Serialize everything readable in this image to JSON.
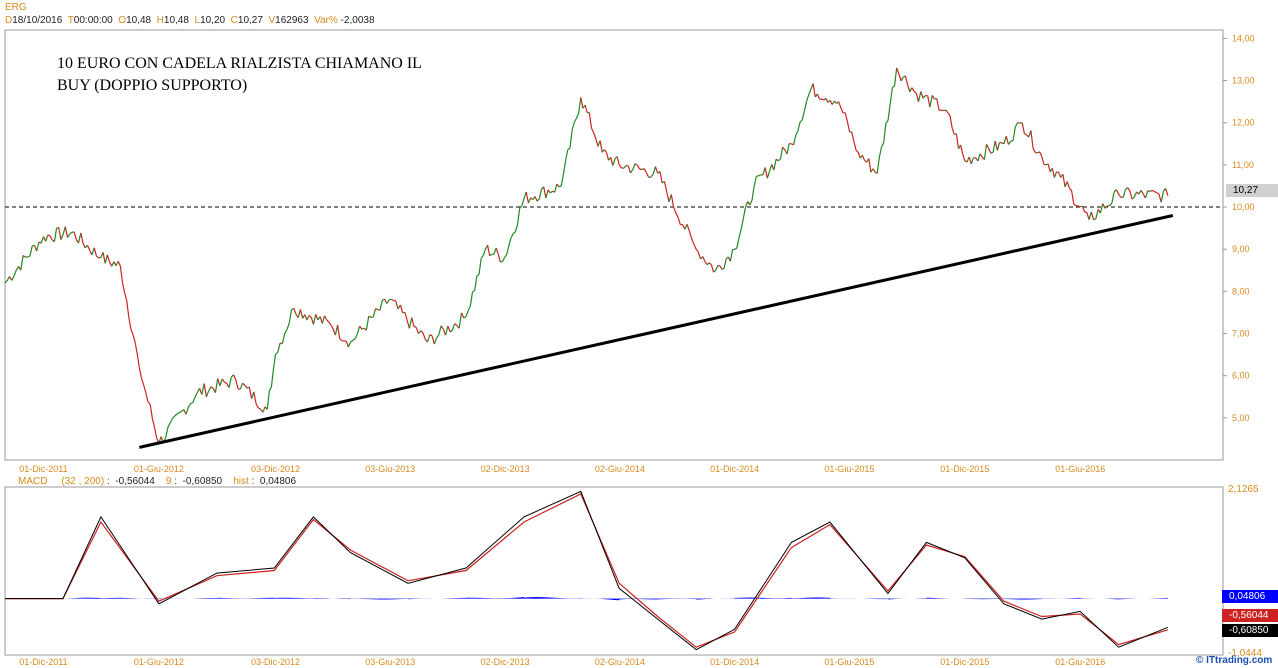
{
  "header": {
    "symbol": "ERG",
    "date_key": "D",
    "date_val": "18/10/2016",
    "time_key": "T",
    "time_val": "00:00:00",
    "open_key": "O",
    "open_val": "10,48",
    "high_key": "H",
    "high_val": "10,48",
    "low_key": "L",
    "low_val": "10,20",
    "close_key": "C",
    "close_val": "10,27",
    "vol_key": "V",
    "vol_val": "162963",
    "var_key": "Var%",
    "var_val": "-2,0038"
  },
  "annotation": {
    "line1": "10 EURO CON CADELA RIALZISTA CHIAMANO IL",
    "line2": "BUY (DOPPIO SUPPORTO)"
  },
  "price_panel": {
    "y_ticks": [
      "14,00",
      "13,00",
      "12,00",
      "11,00",
      "10,00",
      "9,00",
      "8,00",
      "7,00",
      "6,00",
      "5,00"
    ],
    "last_price": "10,27"
  },
  "x_ticks": [
    "01-Dic-2011",
    "01-Giu-2012",
    "03-Dic-2012",
    "03-Giu-2013",
    "02-Dic-2013",
    "02-Giu-2014",
    "01-Dic-2014",
    "01-Giu-2015",
    "01-Dic-2015",
    "01-Giu-2016"
  ],
  "macd_panel": {
    "label": "MACD",
    "params": "(32 , 200)",
    "macd_val": "-0,56044",
    "signal_key": "9",
    "signal_val": "-0,60850",
    "hist_key": "hist",
    "hist_val": "0,04806",
    "y_top": "2,1265",
    "y_bottom": "-1,0444",
    "badges": {
      "hist": "0,04806",
      "macd": "-0,56044",
      "signal": "-0,60850"
    }
  },
  "footer": {
    "credit": "© ITtrading.com"
  },
  "colors": {
    "up": "#1f8a1f",
    "down": "#cc2222",
    "hist": "#0000ff",
    "macd_line": "#000000",
    "signal_line": "#cc2222",
    "axis_label": "#d98a1e"
  },
  "chart_data": {
    "type": "line",
    "title": "ERG",
    "xlabel": "",
    "ylabel": "",
    "ylim": [
      4.0,
      14.2
    ],
    "grid": false,
    "reference_level": 10.0,
    "support_trendline": [
      {
        "x": "2012-05-01",
        "y": 4.3
      },
      {
        "x": "2016-10-18",
        "y": 9.8
      }
    ],
    "x": [
      "2011-10-01",
      "2011-12-01",
      "2012-01-15",
      "2012-03-01",
      "2012-04-01",
      "2012-05-01",
      "2012-06-01",
      "2012-08-01",
      "2012-10-01",
      "2012-11-20",
      "2012-12-03",
      "2013-01-01",
      "2013-03-01",
      "2013-04-01",
      "2013-06-01",
      "2013-08-01",
      "2013-10-01",
      "2013-11-01",
      "2013-12-01",
      "2014-01-01",
      "2014-03-01",
      "2014-04-01",
      "2014-05-05",
      "2014-06-01",
      "2014-08-01",
      "2014-10-01",
      "2014-11-01",
      "2014-12-01",
      "2015-01-01",
      "2015-03-01",
      "2015-04-01",
      "2015-05-15",
      "2015-06-15",
      "2015-07-15",
      "2015-08-15",
      "2015-09-15",
      "2015-11-01",
      "2015-12-01",
      "2016-02-01",
      "2016-03-01",
      "2016-04-01",
      "2016-05-01",
      "2016-06-15",
      "2016-08-01",
      "2016-10-18"
    ],
    "series": [
      {
        "name": "ERG",
        "values": [
          8.2,
          9.3,
          9.4,
          8.8,
          8.6,
          6.2,
          4.4,
          5.6,
          5.9,
          5.2,
          6.5,
          7.6,
          7.2,
          6.8,
          7.8,
          6.8,
          7.4,
          9.0,
          8.8,
          10.2,
          10.5,
          12.6,
          11.3,
          11.0,
          10.8,
          9.0,
          8.5,
          9.0,
          10.5,
          11.5,
          12.8,
          12.5,
          11.3,
          10.8,
          13.3,
          12.7,
          12.3,
          11.1,
          11.5,
          12.0,
          11.2,
          10.7,
          9.7,
          10.3,
          10.27
        ]
      }
    ],
    "macd": {
      "x": [
        "2011-10-01",
        "2012-01-01",
        "2012-03-01",
        "2012-06-01",
        "2012-09-01",
        "2012-12-01",
        "2013-02-01",
        "2013-04-01",
        "2013-07-01",
        "2013-10-01",
        "2014-01-01",
        "2014-04-01",
        "2014-06-01",
        "2014-08-01",
        "2014-10-01",
        "2014-12-01",
        "2015-03-01",
        "2015-05-01",
        "2015-08-01",
        "2015-10-01",
        "2015-12-01",
        "2016-02-01",
        "2016-04-01",
        "2016-06-01",
        "2016-08-01",
        "2016-10-18"
      ],
      "macd_values": [
        0.0,
        0.0,
        1.6,
        -0.1,
        0.5,
        0.6,
        1.6,
        0.9,
        0.3,
        0.6,
        1.6,
        2.1,
        0.2,
        -0.4,
        -1.0,
        -0.6,
        1.1,
        1.5,
        0.1,
        1.1,
        0.8,
        -0.1,
        -0.4,
        -0.25,
        -0.95,
        -0.56
      ],
      "signal_values": [
        0.0,
        0.0,
        1.5,
        -0.05,
        0.45,
        0.55,
        1.55,
        0.95,
        0.35,
        0.55,
        1.5,
        2.05,
        0.3,
        -0.35,
        -0.95,
        -0.65,
        1.0,
        1.45,
        0.15,
        1.05,
        0.82,
        -0.05,
        -0.35,
        -0.3,
        -0.9,
        -0.61
      ],
      "ylim": [
        -1.0444,
        2.1265
      ]
    }
  }
}
